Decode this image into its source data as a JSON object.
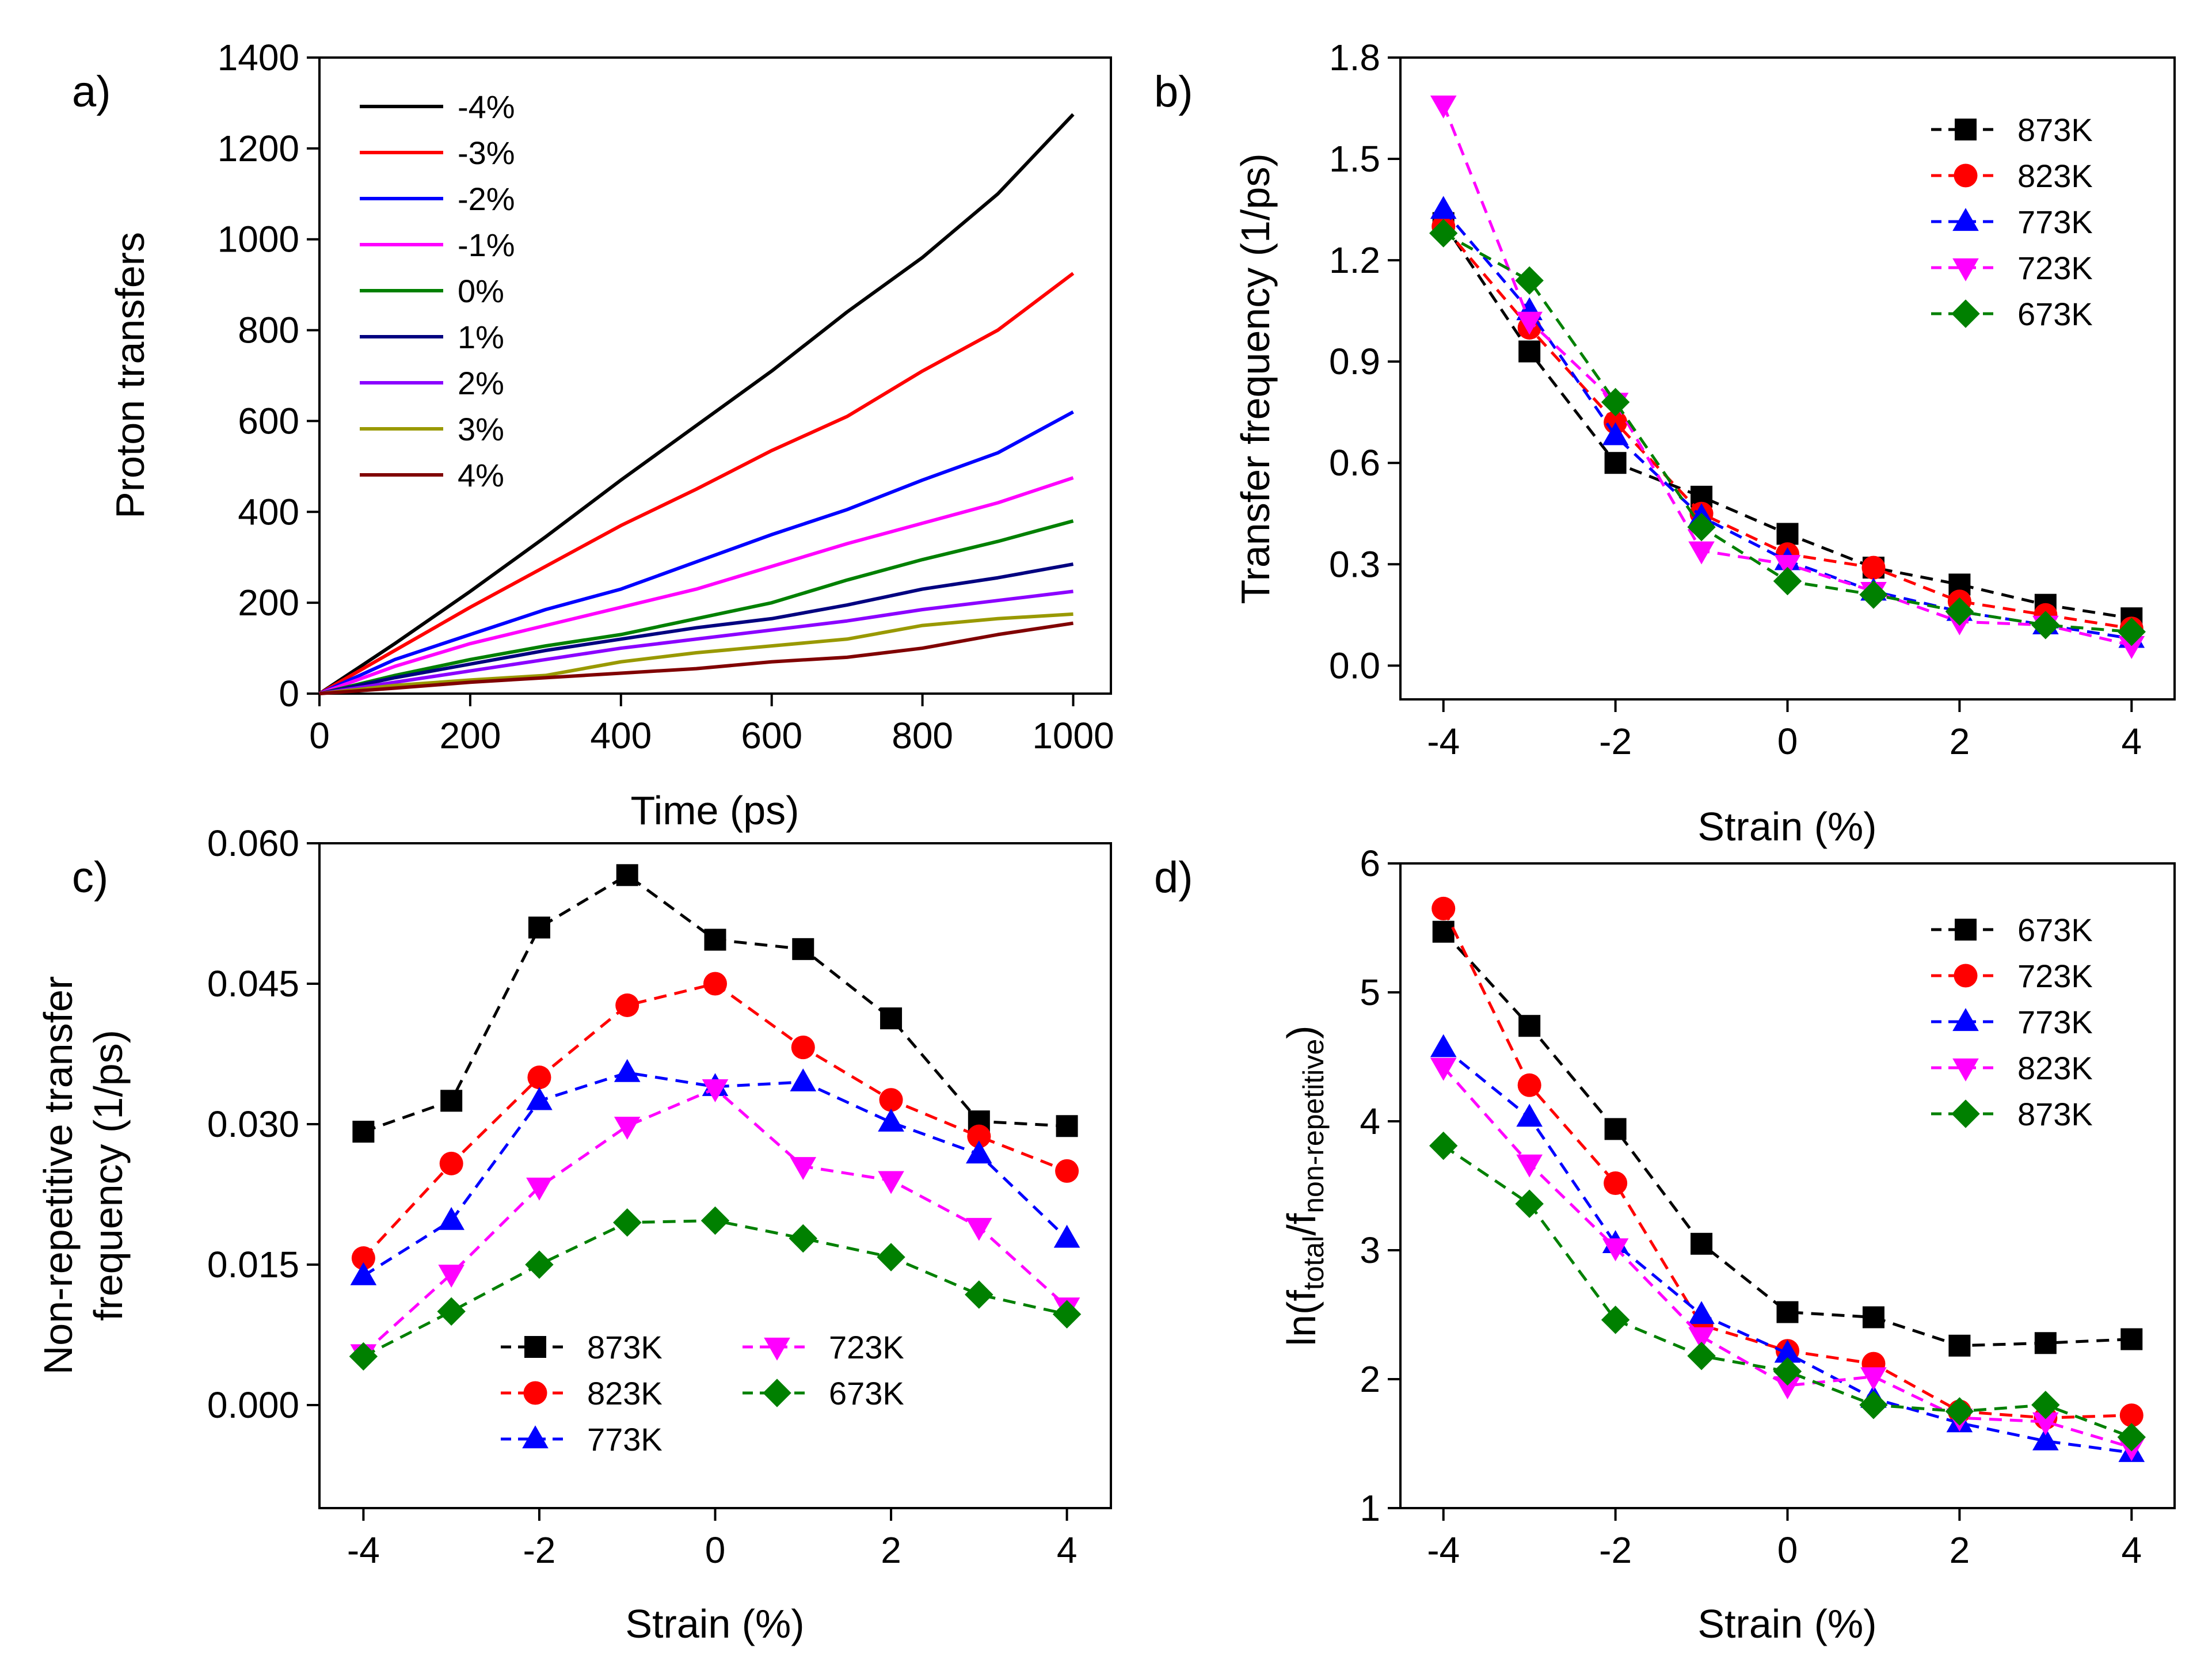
{
  "chart_data": [
    {
      "id": "a",
      "panel_label": "a)",
      "type": "line",
      "xlabel": "Time (ps)",
      "ylabel": "Proton transfers",
      "xlim": [
        0,
        1050
      ],
      "ylim": [
        0,
        1400
      ],
      "xticks": [
        0,
        200,
        400,
        600,
        800,
        1000
      ],
      "yticks": [
        0,
        200,
        400,
        600,
        800,
        1000,
        1200,
        1400
      ],
      "x": [
        0,
        100,
        200,
        300,
        400,
        500,
        600,
        700,
        800,
        900,
        1000
      ],
      "legend_position": "top-left",
      "series": [
        {
          "name": "-4%",
          "color": "#000000",
          "values": [
            0,
            110,
            225,
            345,
            470,
            590,
            710,
            840,
            960,
            1100,
            1275
          ]
        },
        {
          "name": "-3%",
          "color": "#ff0000",
          "values": [
            0,
            95,
            190,
            280,
            370,
            450,
            535,
            610,
            710,
            800,
            925
          ]
        },
        {
          "name": "-2%",
          "color": "#0000ff",
          "values": [
            0,
            75,
            130,
            185,
            230,
            290,
            350,
            405,
            470,
            530,
            620
          ]
        },
        {
          "name": "-1%",
          "color": "#ff00ff",
          "values": [
            0,
            60,
            110,
            150,
            190,
            230,
            280,
            330,
            375,
            420,
            475
          ]
        },
        {
          "name": "0%",
          "color": "#008000",
          "values": [
            0,
            40,
            75,
            105,
            130,
            165,
            200,
            250,
            295,
            335,
            380
          ]
        },
        {
          "name": "1%",
          "color": "#000080",
          "values": [
            0,
            35,
            65,
            95,
            120,
            145,
            165,
            195,
            230,
            255,
            285
          ]
        },
        {
          "name": "2%",
          "color": "#8b00ff",
          "values": [
            0,
            25,
            50,
            75,
            100,
            120,
            140,
            160,
            185,
            205,
            225
          ]
        },
        {
          "name": "3%",
          "color": "#999900",
          "values": [
            0,
            18,
            30,
            40,
            70,
            90,
            105,
            120,
            150,
            165,
            175
          ]
        },
        {
          "name": "4%",
          "color": "#800000",
          "values": [
            0,
            12,
            25,
            35,
            45,
            55,
            70,
            80,
            100,
            130,
            155
          ]
        }
      ]
    },
    {
      "id": "b",
      "panel_label": "b)",
      "type": "line",
      "xlabel": "Strain (%)",
      "ylabel": "Transfer frequency (1/ps)",
      "xlim": [
        -4.5,
        4.5
      ],
      "ylim": [
        -0.1,
        1.8
      ],
      "xticks": [
        -4,
        -2,
        0,
        2,
        4
      ],
      "yticks": [
        0.0,
        0.3,
        0.6,
        0.9,
        1.2,
        1.5,
        1.8
      ],
      "ytick_labels": [
        "0.0",
        "0.3",
        "0.6",
        "0.9",
        "1.2",
        "1.5",
        "1.8"
      ],
      "x": [
        -4,
        -3,
        -2,
        -1,
        0,
        1,
        2,
        3,
        4
      ],
      "legend_position": "top-right",
      "series": [
        {
          "name": "873K",
          "color": "#000000",
          "marker": "square",
          "values": [
            1.31,
            0.93,
            0.6,
            0.5,
            0.39,
            0.29,
            0.24,
            0.18,
            0.14
          ]
        },
        {
          "name": "823K",
          "color": "#ff0000",
          "marker": "circle",
          "values": [
            1.3,
            1.0,
            0.72,
            0.45,
            0.33,
            0.29,
            0.19,
            0.15,
            0.11
          ]
        },
        {
          "name": "773K",
          "color": "#0000ff",
          "marker": "triangle-up",
          "values": [
            1.35,
            1.05,
            0.68,
            0.44,
            0.31,
            0.22,
            0.16,
            0.12,
            0.08
          ]
        },
        {
          "name": "723K",
          "color": "#ff00ff",
          "marker": "triangle-down",
          "values": [
            1.66,
            1.02,
            0.78,
            0.34,
            0.3,
            0.22,
            0.13,
            0.12,
            0.06
          ]
        },
        {
          "name": "673K",
          "color": "#008000",
          "marker": "diamond",
          "values": [
            1.28,
            1.14,
            0.78,
            0.41,
            0.25,
            0.21,
            0.16,
            0.12,
            0.1
          ]
        }
      ]
    },
    {
      "id": "c",
      "panel_label": "c)",
      "type": "line",
      "xlabel": "Strain (%)",
      "ylabel": "Non-repetitive transfer",
      "ylabel2": "frequency (1/ps)",
      "xlim": [
        -4.5,
        4.5
      ],
      "ylim": [
        -0.011,
        0.06
      ],
      "xticks": [
        -4,
        -2,
        0,
        2,
        4
      ],
      "yticks": [
        0.0,
        0.015,
        0.03,
        0.045,
        0.06
      ],
      "ytick_labels": [
        "0.000",
        "0.015",
        "0.030",
        "0.045",
        "0.060"
      ],
      "x": [
        -4,
        -3,
        -2,
        -1,
        0,
        1,
        2,
        3,
        4
      ],
      "legend_position": "bottom-center",
      "series": [
        {
          "name": "873K",
          "color": "#000000",
          "marker": "square",
          "values": [
            0.0292,
            0.0325,
            0.051,
            0.0566,
            0.0497,
            0.0487,
            0.0413,
            0.0303,
            0.0298
          ]
        },
        {
          "name": "823K",
          "color": "#ff0000",
          "marker": "circle",
          "values": [
            0.0157,
            0.0258,
            0.035,
            0.0427,
            0.045,
            0.0382,
            0.0326,
            0.0287,
            0.025
          ]
        },
        {
          "name": "773K",
          "color": "#0000ff",
          "marker": "triangle-up",
          "values": [
            0.0138,
            0.0197,
            0.0325,
            0.0355,
            0.034,
            0.0345,
            0.0302,
            0.0268,
            0.0178
          ]
        },
        {
          "name": "723K",
          "color": "#ff00ff",
          "marker": "triangle-down",
          "values": [
            0.0055,
            0.014,
            0.0233,
            0.0298,
            0.0338,
            0.0255,
            0.024,
            0.019,
            0.0105
          ]
        },
        {
          "name": "673K",
          "color": "#008000",
          "marker": "diamond",
          "values": [
            0.0052,
            0.01,
            0.015,
            0.0195,
            0.0197,
            0.0178,
            0.0158,
            0.0118,
            0.0097
          ]
        }
      ]
    },
    {
      "id": "d",
      "panel_label": "d)",
      "type": "line",
      "xlabel": "Strain (%)",
      "ylabel": "ln(f",
      "ylabel_sub1": "total",
      "ylabel_mid": "/f",
      "ylabel_sub2": "non-repetitive",
      "ylabel_end": ")",
      "xlim": [
        -4.5,
        4.5
      ],
      "ylim": [
        1,
        6
      ],
      "xticks": [
        -4,
        -2,
        0,
        2,
        4
      ],
      "yticks": [
        1,
        2,
        3,
        4,
        5,
        6
      ],
      "ytick_labels": [
        "1",
        "2",
        "3",
        "4",
        "5",
        "6"
      ],
      "x": [
        -4,
        -3,
        -2,
        -1,
        0,
        1,
        2,
        3,
        4
      ],
      "legend_position": "top-right",
      "series": [
        {
          "name": "673K",
          "color": "#000000",
          "marker": "square",
          "values": [
            5.47,
            4.74,
            3.94,
            3.05,
            2.52,
            2.48,
            2.26,
            2.28,
            2.31
          ]
        },
        {
          "name": "723K",
          "color": "#ff0000",
          "marker": "circle",
          "values": [
            5.65,
            4.28,
            3.52,
            2.42,
            2.22,
            2.12,
            1.75,
            1.7,
            1.72
          ]
        },
        {
          "name": "773K",
          "color": "#0000ff",
          "marker": "triangle-up",
          "values": [
            4.57,
            4.03,
            3.05,
            2.5,
            2.2,
            1.85,
            1.66,
            1.52,
            1.43
          ]
        },
        {
          "name": "823K",
          "color": "#ff00ff",
          "marker": "triangle-down",
          "values": [
            4.42,
            3.67,
            3.02,
            2.33,
            1.95,
            2.02,
            1.7,
            1.67,
            1.47
          ]
        },
        {
          "name": "873K",
          "color": "#008000",
          "marker": "diamond",
          "values": [
            3.81,
            3.36,
            2.46,
            2.18,
            2.06,
            1.8,
            1.75,
            1.8,
            1.55
          ]
        }
      ]
    }
  ]
}
